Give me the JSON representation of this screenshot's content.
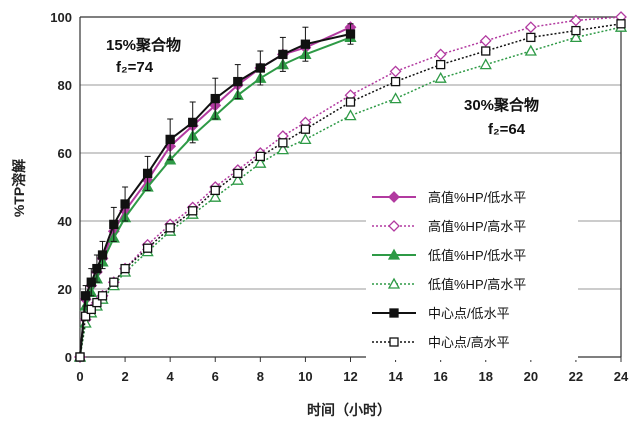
{
  "chart_data": {
    "type": "line",
    "xlabel": "时间（小时）",
    "ylabel": "%TP溶解",
    "xlim": [
      0,
      24
    ],
    "ylim": [
      0,
      100
    ],
    "x_ticks": [
      "0",
      "2",
      "4",
      "6",
      "8",
      "10",
      "12",
      "14",
      "16",
      "18",
      "20",
      "22",
      "24"
    ],
    "y_ticks": [
      "0",
      "20",
      "40",
      "60",
      "80",
      "100"
    ],
    "grid": "horizontal",
    "legend_position": "right",
    "annotations": [
      {
        "line1": "15%聚合物",
        "line2": "f₂=74"
      },
      {
        "line1": "30%聚合物",
        "line2": "f₂=64"
      }
    ],
    "series": [
      {
        "name": "高值%HP/低水平",
        "color": "#b23aa0",
        "marker": "diamond",
        "filled": true,
        "dash": "solid",
        "x": [
          0,
          0.25,
          0.5,
          0.75,
          1,
          1.5,
          2,
          3,
          4,
          5,
          6,
          7,
          8,
          9,
          10,
          12
        ],
        "y": [
          0,
          17,
          21,
          25,
          29,
          37,
          43,
          52,
          62,
          68,
          74,
          80,
          85,
          89,
          91,
          97
        ]
      },
      {
        "name": "高值%HP/高水平",
        "color": "#b23aa0",
        "marker": "diamond",
        "filled": false,
        "dash": "dotted",
        "x": [
          0,
          0.25,
          0.5,
          0.75,
          1,
          1.5,
          2,
          3,
          4,
          5,
          6,
          7,
          8,
          9,
          10,
          12,
          14,
          16,
          18,
          20,
          22,
          24
        ],
        "y": [
          0,
          11,
          14,
          16,
          18,
          22,
          26,
          33,
          39,
          44,
          50,
          55,
          60,
          65,
          69,
          77,
          84,
          89,
          93,
          97,
          99,
          100
        ]
      },
      {
        "name": "低值%HP/低水平",
        "color": "#2e9a46",
        "marker": "triangle",
        "filled": true,
        "dash": "solid",
        "x": [
          0,
          0.25,
          0.5,
          0.75,
          1,
          1.5,
          2,
          3,
          4,
          5,
          6,
          7,
          8,
          9,
          10,
          12
        ],
        "y": [
          0,
          15,
          19,
          23,
          28,
          35,
          41,
          50,
          58,
          65,
          71,
          77,
          82,
          86,
          89,
          94
        ]
      },
      {
        "name": "低值%HP/高水平",
        "color": "#2e9a46",
        "marker": "triangle",
        "filled": false,
        "dash": "dotted",
        "x": [
          0,
          0.25,
          0.5,
          0.75,
          1,
          1.5,
          2,
          3,
          4,
          5,
          6,
          7,
          8,
          9,
          10,
          12,
          14,
          16,
          18,
          20,
          22,
          24
        ],
        "y": [
          0,
          10,
          13,
          15,
          17,
          21,
          25,
          31,
          37,
          42,
          47,
          52,
          57,
          61,
          64,
          71,
          76,
          82,
          86,
          90,
          94,
          97
        ]
      },
      {
        "name": "中心点/低水平",
        "color": "#111111",
        "marker": "square",
        "filled": true,
        "dash": "solid",
        "x": [
          0,
          0.25,
          0.5,
          0.75,
          1,
          1.5,
          2,
          3,
          4,
          5,
          6,
          7,
          8,
          9,
          10,
          12
        ],
        "y": [
          0,
          18,
          22,
          26,
          30,
          39,
          45,
          54,
          64,
          69,
          76,
          81,
          85,
          89,
          92,
          95
        ],
        "error": [
          0,
          3,
          4,
          4,
          4,
          5,
          5,
          5,
          6,
          6,
          6,
          5,
          5,
          5,
          5,
          3
        ]
      },
      {
        "name": "中心点/高水平",
        "color": "#111111",
        "marker": "square",
        "filled": false,
        "dash": "dotted",
        "x": [
          0,
          0.25,
          0.5,
          0.75,
          1,
          1.5,
          2,
          3,
          4,
          5,
          6,
          7,
          8,
          9,
          10,
          12,
          14,
          16,
          18,
          20,
          22,
          24
        ],
        "y": [
          0,
          12,
          14,
          16,
          18,
          22,
          26,
          32,
          38,
          43,
          49,
          54,
          59,
          63,
          67,
          75,
          81,
          86,
          90,
          94,
          96,
          98
        ]
      }
    ]
  }
}
